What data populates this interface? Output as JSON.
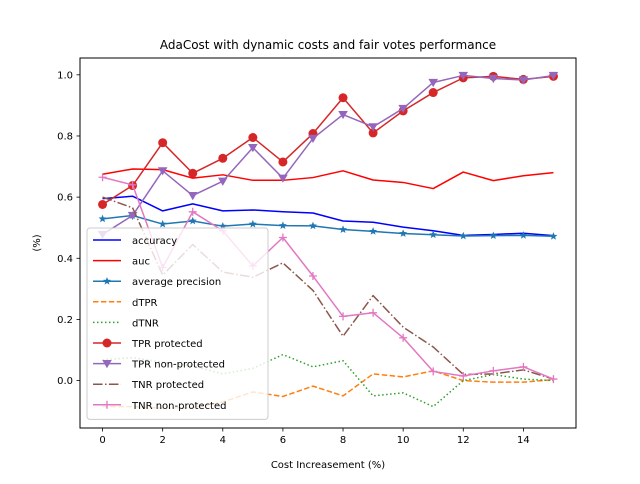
{
  "chart_data": {
    "type": "line",
    "title": "AdaCost with dynamic costs and fair votes performance",
    "xlabel": "Cost Increasement (%)",
    "ylabel": "(%)",
    "xlim": [
      -0.75,
      15.75
    ],
    "ylim": [
      -0.155,
      1.055
    ],
    "xticks": [
      0,
      2,
      4,
      6,
      8,
      10,
      12,
      14
    ],
    "yticks": [
      0.0,
      0.2,
      0.4,
      0.6,
      0.8,
      1.0
    ],
    "grid": false,
    "legend_position": "center-left",
    "x": [
      0,
      1,
      2,
      3,
      4,
      5,
      6,
      7,
      8,
      9,
      10,
      11,
      12,
      13,
      14,
      15
    ],
    "series": [
      {
        "name": "accuracy",
        "color": "#0000ff",
        "linestyle": "solid",
        "marker": "none",
        "values": [
          0.595,
          0.603,
          0.555,
          0.578,
          0.555,
          0.558,
          0.552,
          0.548,
          0.522,
          0.518,
          0.502,
          0.49,
          0.475,
          0.478,
          0.482,
          0.474
        ]
      },
      {
        "name": "auc",
        "color": "#ff0000",
        "linestyle": "solid",
        "marker": "none",
        "values": [
          0.675,
          0.692,
          0.69,
          0.662,
          0.673,
          0.655,
          0.655,
          0.664,
          0.686,
          0.656,
          0.648,
          0.628,
          0.682,
          0.654,
          0.67,
          0.68
        ]
      },
      {
        "name": "average precision",
        "color": "#1f77b4",
        "linestyle": "solid",
        "marker": "star",
        "values": [
          0.529,
          0.54,
          0.512,
          0.522,
          0.505,
          0.512,
          0.507,
          0.506,
          0.494,
          0.488,
          0.481,
          0.477,
          0.473,
          0.474,
          0.475,
          0.472
        ]
      },
      {
        "name": "dTPR",
        "color": "#ff7f0e",
        "linestyle": "dashed",
        "marker": "none",
        "values": [
          -0.085,
          -0.085,
          -0.09,
          -0.088,
          -0.07,
          -0.037,
          -0.052,
          -0.018,
          -0.05,
          0.022,
          0.012,
          0.032,
          0.0,
          -0.005,
          -0.005,
          0.003
        ]
      },
      {
        "name": "dTNR",
        "color": "#2ca02c",
        "linestyle": "dotted",
        "marker": "none",
        "values": [
          0.068,
          0.075,
          0.06,
          0.048,
          0.022,
          0.04,
          0.085,
          0.045,
          0.065,
          -0.05,
          -0.04,
          -0.085,
          0.0,
          0.02,
          0.005,
          0.0
        ]
      },
      {
        "name": "TPR protected",
        "color": "#d62728",
        "linestyle": "solid",
        "marker": "circle",
        "values": [
          0.576,
          0.638,
          0.778,
          0.678,
          0.727,
          0.795,
          0.715,
          0.808,
          0.925,
          0.81,
          0.882,
          0.942,
          0.99,
          0.995,
          0.985,
          0.995
        ]
      },
      {
        "name": "TPR non-protected",
        "color": "#9467bd",
        "linestyle": "solid",
        "marker": "triangle-down",
        "values": [
          0.478,
          0.54,
          0.686,
          0.605,
          0.652,
          0.762,
          0.662,
          0.792,
          0.87,
          0.83,
          0.89,
          0.975,
          0.998,
          0.988,
          0.983,
          0.998
        ]
      },
      {
        "name": "TNR protected",
        "color": "#8c564b",
        "linestyle": "dashdot",
        "marker": "none",
        "values": [
          0.6,
          0.565,
          0.345,
          0.445,
          0.355,
          0.338,
          0.385,
          0.295,
          0.145,
          0.278,
          0.175,
          0.11,
          0.02,
          0.022,
          0.035,
          0.005
        ]
      },
      {
        "name": "TNR non-protected",
        "color": "#e377c2",
        "linestyle": "solid",
        "marker": "plus",
        "values": [
          0.665,
          0.64,
          0.37,
          0.552,
          0.49,
          0.375,
          0.468,
          0.342,
          0.21,
          0.222,
          0.14,
          0.03,
          0.015,
          0.032,
          0.045,
          0.005
        ]
      }
    ]
  }
}
